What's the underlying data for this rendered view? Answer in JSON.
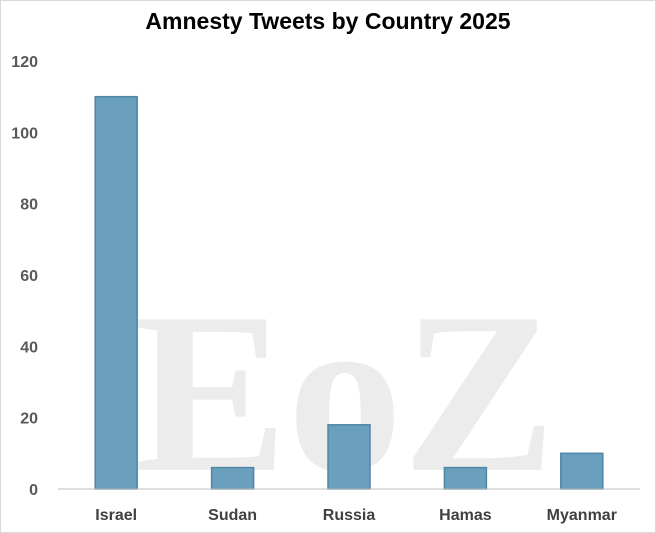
{
  "chart_data": {
    "type": "bar",
    "title": "Amnesty Tweets by Country 2025",
    "categories": [
      "Israel",
      "Sudan",
      "Russia",
      "Hamas",
      "Myanmar"
    ],
    "values": [
      110,
      6,
      18,
      6,
      10
    ],
    "ylim": [
      0,
      120
    ],
    "yticks": [
      "0",
      "20",
      "40",
      "60",
      "80",
      "100",
      "120"
    ],
    "bar_color": "#6a9fbe",
    "bar_edge_color": "#4f86a6",
    "grid": false,
    "watermark": "EoZ"
  }
}
